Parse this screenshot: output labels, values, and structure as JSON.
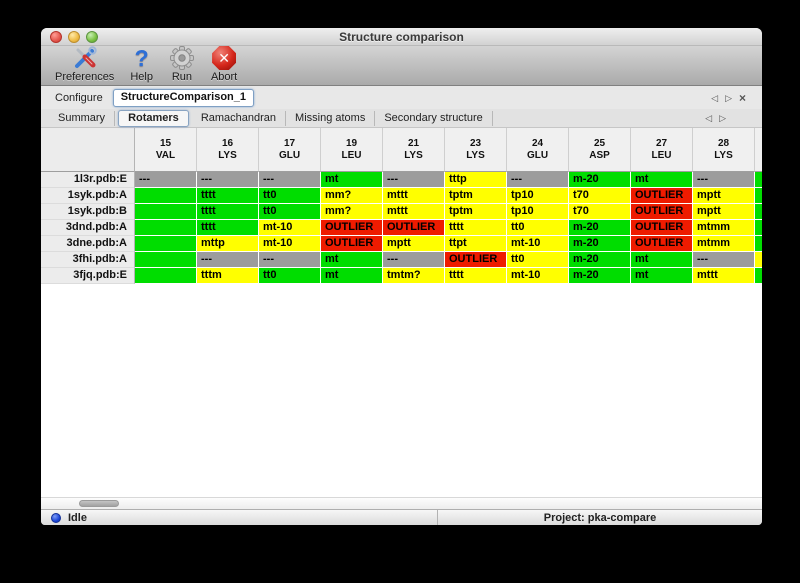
{
  "window": {
    "title": "Structure comparison"
  },
  "toolbar": {
    "buttons": [
      {
        "id": "preferences",
        "label": "Preferences"
      },
      {
        "id": "help",
        "label": "Help"
      },
      {
        "id": "run",
        "label": "Run"
      },
      {
        "id": "abort",
        "label": "Abort"
      }
    ]
  },
  "configure": {
    "label": "Configure",
    "value": "StructureComparison_1"
  },
  "tabs": {
    "selected": "Rotamers",
    "items": [
      "Summary",
      "Rotamers",
      "Ramachandran",
      "Missing atoms",
      "Secondary structure"
    ]
  },
  "icons": {
    "nav_back": "◁",
    "nav_forward": "▷",
    "pane_close": "×",
    "abort_x": "✕"
  },
  "colors": {
    "green": "#00dd00",
    "yellow": "#ffff00",
    "red": "#ee1b00",
    "gray": "#9c9c9c"
  },
  "table": {
    "columns": [
      {
        "num": "15",
        "res": "VAL"
      },
      {
        "num": "16",
        "res": "LYS"
      },
      {
        "num": "17",
        "res": "GLU"
      },
      {
        "num": "19",
        "res": "LEU"
      },
      {
        "num": "21",
        "res": "LYS"
      },
      {
        "num": "23",
        "res": "LYS"
      },
      {
        "num": "24",
        "res": "GLU"
      },
      {
        "num": "25",
        "res": "ASP"
      },
      {
        "num": "27",
        "res": "LEU"
      },
      {
        "num": "28",
        "res": "LYS"
      }
    ],
    "rows": [
      {
        "label": "1l3r.pdb:E",
        "edge": "green",
        "cells": [
          {
            "t": "---",
            "c": "gray"
          },
          {
            "t": "---",
            "c": "gray"
          },
          {
            "t": "---",
            "c": "gray"
          },
          {
            "t": "mt",
            "c": "green"
          },
          {
            "t": "---",
            "c": "gray"
          },
          {
            "t": "tttp",
            "c": "yellow"
          },
          {
            "t": "---",
            "c": "gray"
          },
          {
            "t": "m-20",
            "c": "green"
          },
          {
            "t": "mt",
            "c": "green"
          },
          {
            "t": "---",
            "c": "gray"
          }
        ]
      },
      {
        "label": "1syk.pdb:A",
        "edge": "green",
        "cells": [
          {
            "t": "",
            "c": "green"
          },
          {
            "t": "tttt",
            "c": "green"
          },
          {
            "t": "tt0",
            "c": "green"
          },
          {
            "t": "mm?",
            "c": "yellow"
          },
          {
            "t": "mttt",
            "c": "yellow"
          },
          {
            "t": "tptm",
            "c": "yellow"
          },
          {
            "t": "tp10",
            "c": "yellow"
          },
          {
            "t": "t70",
            "c": "yellow"
          },
          {
            "t": "OUTLIER",
            "c": "red"
          },
          {
            "t": "mptt",
            "c": "yellow"
          }
        ]
      },
      {
        "label": "1syk.pdb:B",
        "edge": "green",
        "cells": [
          {
            "t": "",
            "c": "green"
          },
          {
            "t": "tttt",
            "c": "green"
          },
          {
            "t": "tt0",
            "c": "green"
          },
          {
            "t": "mm?",
            "c": "yellow"
          },
          {
            "t": "mttt",
            "c": "yellow"
          },
          {
            "t": "tptm",
            "c": "yellow"
          },
          {
            "t": "tp10",
            "c": "yellow"
          },
          {
            "t": "t70",
            "c": "yellow"
          },
          {
            "t": "OUTLIER",
            "c": "red"
          },
          {
            "t": "mptt",
            "c": "yellow"
          }
        ]
      },
      {
        "label": "3dnd.pdb:A",
        "edge": "green",
        "cells": [
          {
            "t": "",
            "c": "green"
          },
          {
            "t": "tttt",
            "c": "green"
          },
          {
            "t": "mt-10",
            "c": "yellow"
          },
          {
            "t": "OUTLIER",
            "c": "red"
          },
          {
            "t": "OUTLIER",
            "c": "red"
          },
          {
            "t": "tttt",
            "c": "yellow"
          },
          {
            "t": "tt0",
            "c": "yellow"
          },
          {
            "t": "m-20",
            "c": "green"
          },
          {
            "t": "OUTLIER",
            "c": "red"
          },
          {
            "t": "mtmm",
            "c": "yellow"
          }
        ]
      },
      {
        "label": "3dne.pdb:A",
        "edge": "green",
        "cells": [
          {
            "t": "",
            "c": "green"
          },
          {
            "t": "mttp",
            "c": "yellow"
          },
          {
            "t": "mt-10",
            "c": "yellow"
          },
          {
            "t": "OUTLIER",
            "c": "red"
          },
          {
            "t": "mptt",
            "c": "yellow"
          },
          {
            "t": "ttpt",
            "c": "yellow"
          },
          {
            "t": "mt-10",
            "c": "yellow"
          },
          {
            "t": "m-20",
            "c": "green"
          },
          {
            "t": "OUTLIER",
            "c": "red"
          },
          {
            "t": "mtmm",
            "c": "yellow"
          }
        ]
      },
      {
        "label": "3fhi.pdb:A",
        "edge": "yellow",
        "cells": [
          {
            "t": "",
            "c": "green"
          },
          {
            "t": "---",
            "c": "gray"
          },
          {
            "t": "---",
            "c": "gray"
          },
          {
            "t": "mt",
            "c": "green"
          },
          {
            "t": "---",
            "c": "gray"
          },
          {
            "t": "OUTLIER",
            "c": "red"
          },
          {
            "t": "tt0",
            "c": "yellow"
          },
          {
            "t": "m-20",
            "c": "green"
          },
          {
            "t": "mt",
            "c": "green"
          },
          {
            "t": "---",
            "c": "gray"
          }
        ]
      },
      {
        "label": "3fjq.pdb:E",
        "edge": "green",
        "cells": [
          {
            "t": "",
            "c": "green"
          },
          {
            "t": "tttm",
            "c": "yellow"
          },
          {
            "t": "tt0",
            "c": "green"
          },
          {
            "t": "mt",
            "c": "green"
          },
          {
            "t": "tmtm?",
            "c": "yellow"
          },
          {
            "t": "tttt",
            "c": "yellow"
          },
          {
            "t": "mt-10",
            "c": "yellow"
          },
          {
            "t": "m-20",
            "c": "green"
          },
          {
            "t": "mt",
            "c": "green"
          },
          {
            "t": "mttt",
            "c": "yellow"
          }
        ]
      }
    ]
  },
  "statusbar": {
    "status": "Idle",
    "project": "Project: pka-compare"
  }
}
